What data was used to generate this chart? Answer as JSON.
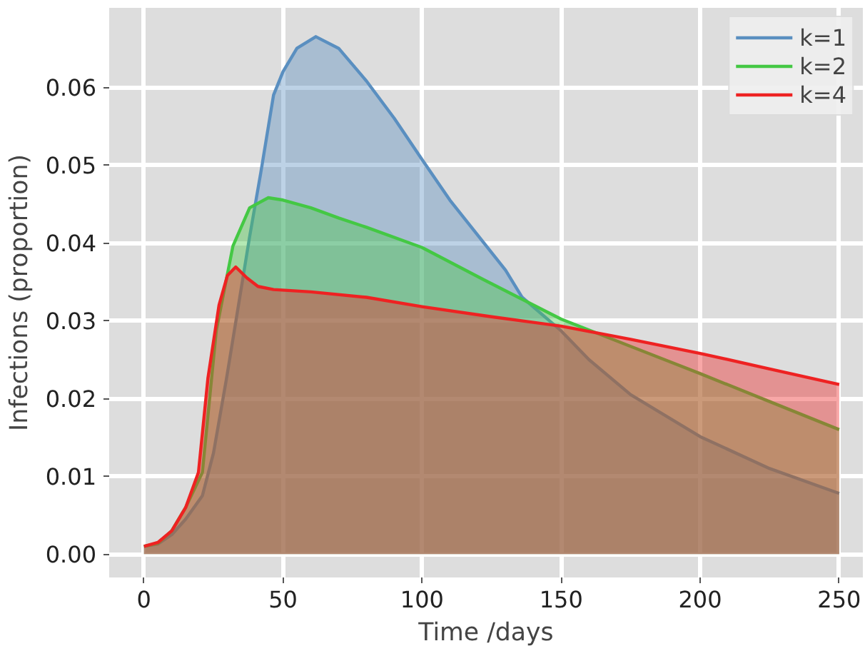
{
  "chart_data": {
    "type": "area",
    "xlabel": "Time /days",
    "ylabel": "Infections (proportion)",
    "xlim": [
      -12.5,
      258.5
    ],
    "ylim": [
      -0.003,
      0.0702
    ],
    "xticks": [
      0,
      50,
      100,
      150,
      200,
      250
    ],
    "yticks": [
      {
        "value": 0,
        "label": "0.00"
      },
      {
        "value": 0.01,
        "label": "0.01"
      },
      {
        "value": 0.02,
        "label": "0.02"
      },
      {
        "value": 0.03,
        "label": "0.03"
      },
      {
        "value": 0.04,
        "label": "0.04"
      },
      {
        "value": 0.05,
        "label": "0.05"
      },
      {
        "value": 0.06,
        "label": "0.06"
      }
    ],
    "grid": true,
    "legend": "top right",
    "series": [
      {
        "name": "k=1",
        "color": "#5a8fc0",
        "x": [
          0,
          5,
          10,
          15,
          21,
          25,
          29.7,
          34,
          38,
          42,
          46.6,
          50,
          55,
          61.8,
          70,
          80,
          90,
          100,
          110,
          120,
          130,
          136,
          150,
          160,
          175,
          200,
          225,
          250
        ],
        "values": [
          0.001,
          0.0013,
          0.0025,
          0.0045,
          0.0075,
          0.013,
          0.0226,
          0.032,
          0.0408,
          0.049,
          0.059,
          0.062,
          0.065,
          0.0665,
          0.065,
          0.0608,
          0.056,
          0.0507,
          0.0455,
          0.041,
          0.0365,
          0.033,
          0.0287,
          0.025,
          0.0205,
          0.0151,
          0.011,
          0.0078
        ]
      },
      {
        "name": "k=2",
        "color": "#44c844",
        "x": [
          0,
          5,
          10,
          15,
          21,
          26,
          32,
          38,
          44.7,
          50,
          60,
          70,
          80,
          100,
          122,
          150,
          175,
          200,
          225,
          250
        ],
        "values": [
          0.001,
          0.0014,
          0.003,
          0.006,
          0.0105,
          0.0287,
          0.0396,
          0.0445,
          0.0458,
          0.0455,
          0.0445,
          0.0432,
          0.042,
          0.0394,
          0.0353,
          0.0302,
          0.0267,
          0.0232,
          0.0196,
          0.016
        ]
      },
      {
        "name": "k=4",
        "color": "#ee2222",
        "x": [
          0,
          5,
          10,
          15,
          19.6,
          23,
          27,
          30,
          33,
          37,
          41,
          46.6,
          60,
          80,
          100,
          125,
          150,
          175,
          200,
          225,
          250
        ],
        "values": [
          0.001,
          0.0015,
          0.003,
          0.006,
          0.0105,
          0.0226,
          0.032,
          0.0358,
          0.0369,
          0.0355,
          0.0344,
          0.034,
          0.0337,
          0.033,
          0.0318,
          0.0305,
          0.0293,
          0.0276,
          0.0258,
          0.0238,
          0.0218
        ]
      }
    ]
  }
}
